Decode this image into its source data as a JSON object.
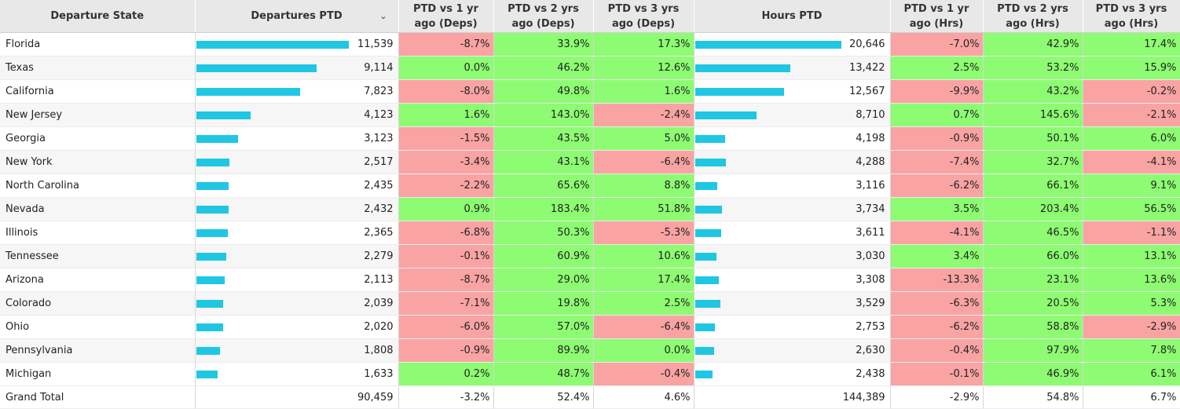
{
  "headers": {
    "state": "Departure State",
    "departures": "Departures PTD",
    "deps_1yr": "PTD vs 1 yr ago (Deps)",
    "deps_2yr": "PTD vs 2 yrs ago (Deps)",
    "deps_3yr": "PTD vs 3 yrs ago (Deps)",
    "hours": "Hours PTD",
    "hrs_1yr": "PTD vs 1 yr ago (Hrs)",
    "hrs_2yr": "PTD vs 2 yrs ago (Hrs)",
    "hrs_3yr": "PTD vs 3 yrs ago (Hrs)"
  },
  "sort_icon": "chevron-down-icon",
  "colors": {
    "positive": "#8dfc72",
    "negative": "#f9a3a3",
    "bar": "#1fc7e3"
  },
  "rows": [
    {
      "state": "Florida",
      "departures": "11,539",
      "deps_1yr": "-8.7%",
      "deps_2yr": "33.9%",
      "deps_3yr": "17.3%",
      "hours": "20,646",
      "hrs_1yr": "-7.0%",
      "hrs_2yr": "42.9%",
      "hrs_3yr": "17.4%"
    },
    {
      "state": "Texas",
      "departures": "9,114",
      "deps_1yr": "0.0%",
      "deps_2yr": "46.2%",
      "deps_3yr": "12.6%",
      "hours": "13,422",
      "hrs_1yr": "2.5%",
      "hrs_2yr": "53.2%",
      "hrs_3yr": "15.9%"
    },
    {
      "state": "California",
      "departures": "7,823",
      "deps_1yr": "-8.0%",
      "deps_2yr": "49.8%",
      "deps_3yr": "1.6%",
      "hours": "12,567",
      "hrs_1yr": "-9.9%",
      "hrs_2yr": "43.2%",
      "hrs_3yr": "-0.2%"
    },
    {
      "state": "New Jersey",
      "departures": "4,123",
      "deps_1yr": "1.6%",
      "deps_2yr": "143.0%",
      "deps_3yr": "-2.4%",
      "hours": "8,710",
      "hrs_1yr": "0.7%",
      "hrs_2yr": "145.6%",
      "hrs_3yr": "-2.1%"
    },
    {
      "state": "Georgia",
      "departures": "3,123",
      "deps_1yr": "-1.5%",
      "deps_2yr": "43.5%",
      "deps_3yr": "5.0%",
      "hours": "4,198",
      "hrs_1yr": "-0.9%",
      "hrs_2yr": "50.1%",
      "hrs_3yr": "6.0%"
    },
    {
      "state": "New York",
      "departures": "2,517",
      "deps_1yr": "-3.4%",
      "deps_2yr": "43.1%",
      "deps_3yr": "-6.4%",
      "hours": "4,288",
      "hrs_1yr": "-7.4%",
      "hrs_2yr": "32.7%",
      "hrs_3yr": "-4.1%"
    },
    {
      "state": "North Carolina",
      "departures": "2,435",
      "deps_1yr": "-2.2%",
      "deps_2yr": "65.6%",
      "deps_3yr": "8.8%",
      "hours": "3,116",
      "hrs_1yr": "-6.2%",
      "hrs_2yr": "66.1%",
      "hrs_3yr": "9.1%"
    },
    {
      "state": "Nevada",
      "departures": "2,432",
      "deps_1yr": "0.9%",
      "deps_2yr": "183.4%",
      "deps_3yr": "51.8%",
      "hours": "3,734",
      "hrs_1yr": "3.5%",
      "hrs_2yr": "203.4%",
      "hrs_3yr": "56.5%"
    },
    {
      "state": "Illinois",
      "departures": "2,365",
      "deps_1yr": "-6.8%",
      "deps_2yr": "50.3%",
      "deps_3yr": "-5.3%",
      "hours": "3,611",
      "hrs_1yr": "-4.1%",
      "hrs_2yr": "46.5%",
      "hrs_3yr": "-1.1%"
    },
    {
      "state": "Tennessee",
      "departures": "2,279",
      "deps_1yr": "-0.1%",
      "deps_2yr": "60.9%",
      "deps_3yr": "10.6%",
      "hours": "3,030",
      "hrs_1yr": "3.4%",
      "hrs_2yr": "66.0%",
      "hrs_3yr": "13.1%"
    },
    {
      "state": "Arizona",
      "departures": "2,113",
      "deps_1yr": "-8.7%",
      "deps_2yr": "29.0%",
      "deps_3yr": "17.4%",
      "hours": "3,308",
      "hrs_1yr": "-13.3%",
      "hrs_2yr": "23.1%",
      "hrs_3yr": "13.6%"
    },
    {
      "state": "Colorado",
      "departures": "2,039",
      "deps_1yr": "-7.1%",
      "deps_2yr": "19.8%",
      "deps_3yr": "2.5%",
      "hours": "3,529",
      "hrs_1yr": "-6.3%",
      "hrs_2yr": "20.5%",
      "hrs_3yr": "5.3%"
    },
    {
      "state": "Ohio",
      "departures": "2,020",
      "deps_1yr": "-6.0%",
      "deps_2yr": "57.0%",
      "deps_3yr": "-6.4%",
      "hours": "2,753",
      "hrs_1yr": "-6.2%",
      "hrs_2yr": "58.8%",
      "hrs_3yr": "-2.9%"
    },
    {
      "state": "Pennsylvania",
      "departures": "1,808",
      "deps_1yr": "-0.9%",
      "deps_2yr": "89.9%",
      "deps_3yr": "0.0%",
      "hours": "2,630",
      "hrs_1yr": "-0.4%",
      "hrs_2yr": "97.9%",
      "hrs_3yr": "7.8%"
    },
    {
      "state": "Michigan",
      "departures": "1,633",
      "deps_1yr": "0.2%",
      "deps_2yr": "48.7%",
      "deps_3yr": "-0.4%",
      "hours": "2,438",
      "hrs_1yr": "-0.1%",
      "hrs_2yr": "46.9%",
      "hrs_3yr": "6.1%"
    }
  ],
  "total": {
    "state": "Grand Total",
    "departures": "90,459",
    "deps_1yr": "-3.2%",
    "deps_2yr": "52.4%",
    "deps_3yr": "4.6%",
    "hours": "144,389",
    "hrs_1yr": "-2.9%",
    "hrs_2yr": "54.8%",
    "hrs_3yr": "6.7%"
  }
}
